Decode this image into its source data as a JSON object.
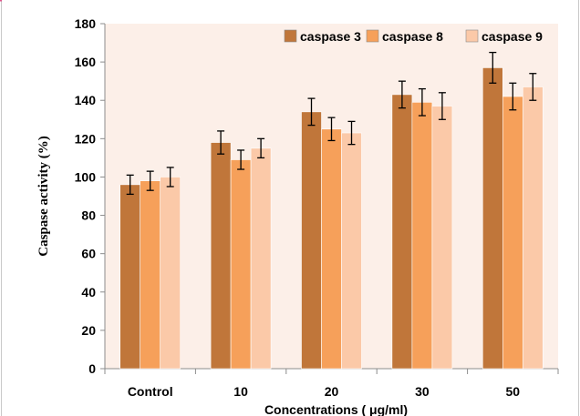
{
  "chart_data": {
    "type": "bar",
    "title": "",
    "xlabel": "Concentrations ( μg/ml)",
    "ylabel": "Caspase activity (%)",
    "ylim": [
      0,
      180
    ],
    "yticks": [
      0,
      20,
      40,
      60,
      80,
      100,
      120,
      140,
      160,
      180
    ],
    "categories": [
      "Control",
      "10",
      "20",
      "30",
      "50"
    ],
    "series": [
      {
        "name": "caspase 3",
        "color": "#c0763a",
        "values": [
          96,
          118,
          134,
          143,
          157
        ],
        "errors": [
          5,
          6,
          7,
          7,
          8
        ]
      },
      {
        "name": "caspase 8",
        "color": "#f6a05a",
        "values": [
          98,
          109,
          125,
          139,
          142
        ],
        "errors": [
          5,
          5,
          6,
          7,
          7
        ]
      },
      {
        "name": "caspase 9",
        "color": "#fbc9a8",
        "values": [
          100,
          115,
          123,
          137,
          147
        ],
        "errors": [
          5,
          5,
          6,
          7,
          7
        ]
      }
    ],
    "legend_position": "top-right",
    "grid": false,
    "plot_background": "#fcefe8",
    "error_bars": true
  }
}
